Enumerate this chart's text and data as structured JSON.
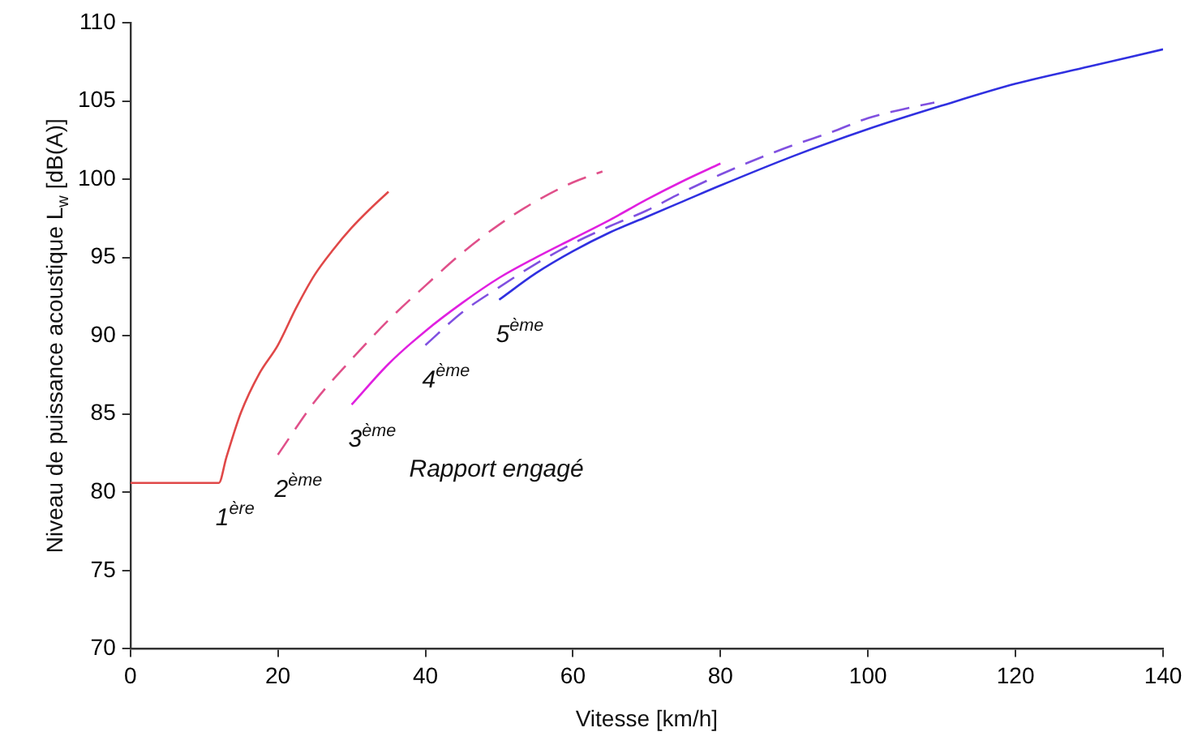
{
  "chart_data": {
    "type": "line",
    "xlabel": "Vitesse [km/h]",
    "ylabel": "Niveau de puissance acoustique L$_{w}$ [dB(A)]",
    "xlim": [
      0,
      140
    ],
    "xticks": [
      0,
      20,
      40,
      60,
      80,
      100,
      120,
      140
    ],
    "ylim": [
      70,
      110
    ],
    "yticks": [
      70,
      75,
      80,
      85,
      90,
      95,
      100,
      105,
      110
    ],
    "grid": false,
    "legend": false,
    "marker": "none",
    "series": [
      {
        "name": "1$^{ère}$",
        "color": "#e04848",
        "line_style": "solid",
        "x": [
          0,
          12,
          13,
          15,
          17.5,
          20,
          22.5,
          25,
          27.5,
          30,
          32.5,
          35
        ],
        "values": [
          80.6,
          80.6,
          82.2,
          85.1,
          87.6,
          89.4,
          91.8,
          93.9,
          95.5,
          96.9,
          98.1,
          99.2
        ]
      },
      {
        "name": "2$^{ème}$",
        "color": "#e0508a",
        "line_style": "dashed",
        "x": [
          20,
          25,
          30,
          35,
          40,
          45,
          50,
          55,
          60,
          64
        ],
        "values": [
          82.4,
          85.8,
          88.5,
          91,
          93.2,
          95.3,
          97.1,
          98.6,
          99.8,
          100.5
        ]
      },
      {
        "name": "3$^{ème}$",
        "color": "#e020e0",
        "line_style": "solid",
        "x": [
          30,
          35,
          40,
          45,
          50,
          55,
          60,
          65,
          70,
          75,
          80
        ],
        "values": [
          85.6,
          88.2,
          90.3,
          92.1,
          93.7,
          95,
          96.2,
          97.4,
          98.7,
          99.9,
          101
        ]
      },
      {
        "name": "4$^{ème}$",
        "color": "#8050e0",
        "line_style": "dashed",
        "x": [
          40,
          45,
          50,
          55,
          60,
          65,
          70,
          75,
          80,
          85,
          90,
          95,
          100,
          105,
          109
        ],
        "values": [
          89.4,
          91.5,
          93.1,
          94.6,
          95.9,
          97,
          98,
          99.2,
          100.3,
          101.3,
          102.2,
          103,
          103.9,
          104.5,
          104.9
        ]
      },
      {
        "name": "5$^{ème}$",
        "color": "#3030e0",
        "line_style": "solid",
        "x": [
          50,
          55,
          60,
          65,
          70,
          75,
          80,
          90,
          100,
          110,
          120,
          130,
          140
        ],
        "values": [
          92.3,
          94,
          95.4,
          96.6,
          97.6,
          98.6,
          99.6,
          101.5,
          103.2,
          104.7,
          106.1,
          107.2,
          108.3
        ]
      }
    ],
    "annotations": [
      "Rapport engagé"
    ]
  }
}
